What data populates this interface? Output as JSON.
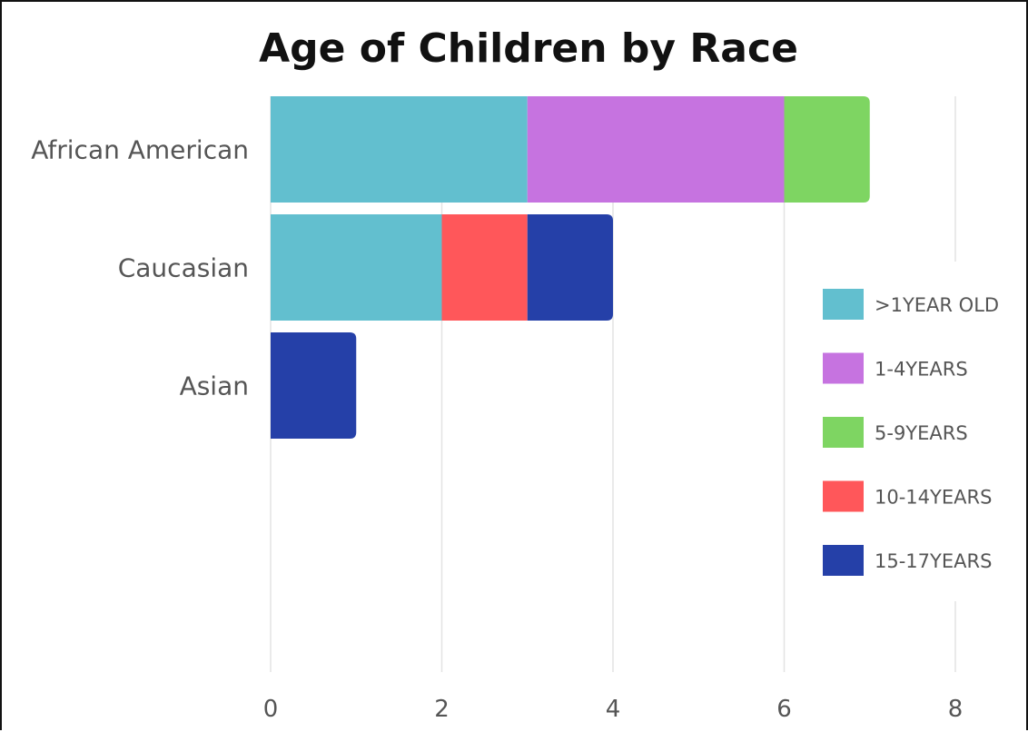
{
  "chart_data": {
    "type": "bar",
    "orientation": "horizontal",
    "stacked": true,
    "title": "Age of Children by Race",
    "xlabel": "",
    "ylabel": "",
    "categories": [
      "African American",
      "Caucasian",
      "Asian"
    ],
    "xlim": [
      0,
      8
    ],
    "xticks": [
      0,
      2,
      4,
      6,
      8
    ],
    "grid": true,
    "legend_position": "right",
    "series": [
      {
        "name": ">1YEAR OLD",
        "color": "#62BFCF",
        "values": [
          3,
          2,
          0
        ]
      },
      {
        "name": "1-4YEARS",
        "color": "#C673E0",
        "values": [
          3,
          0,
          0
        ]
      },
      {
        "name": "5-9YEARS",
        "color": "#7ED562",
        "values": [
          1,
          0,
          0
        ]
      },
      {
        "name": "10-14YEARS",
        "color": "#FF575A",
        "values": [
          0,
          1,
          0
        ]
      },
      {
        "name": "15-17YEARS",
        "color": "#2540A8",
        "values": [
          0,
          1,
          1
        ]
      }
    ]
  }
}
